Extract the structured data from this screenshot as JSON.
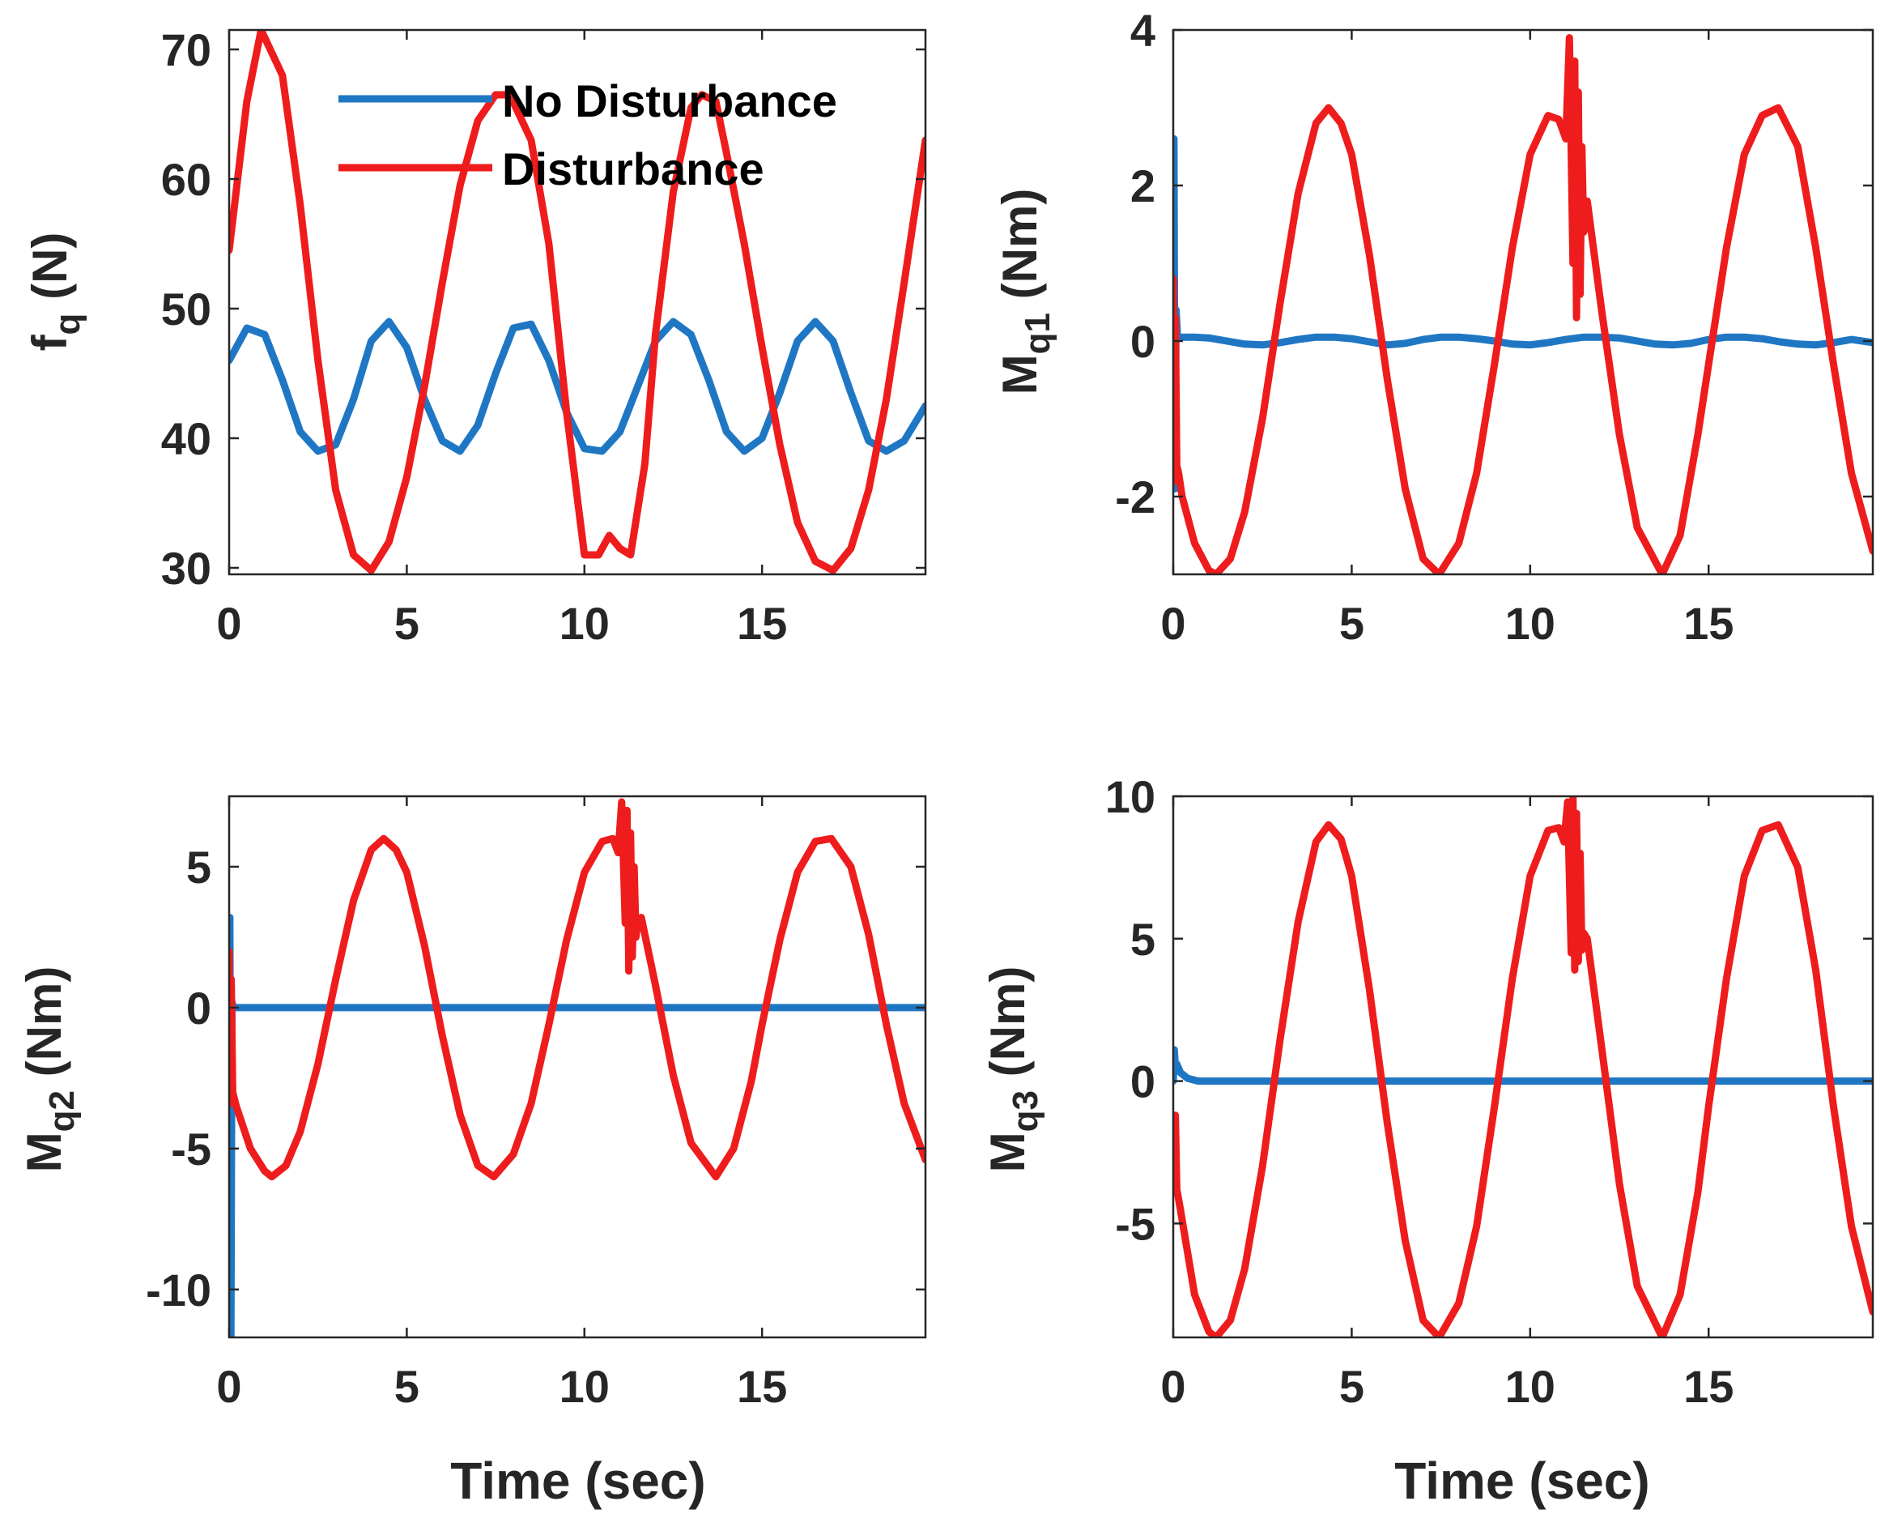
{
  "colors": {
    "no_disturbance": "#1f77c4",
    "disturbance": "#ee1c1c",
    "axis": "#262626"
  },
  "legend": {
    "entries": [
      "No Disturbance",
      "Disturbance"
    ],
    "location": "top-left panel, upper middle"
  },
  "chart_data": [
    {
      "type": "line",
      "ylabel_main": "f",
      "ylabel_sub": "q",
      "ylabel_unit": " (N)",
      "xlabel": "",
      "xlim": [
        0,
        19.6
      ],
      "ylim": [
        29.5,
        71.5
      ],
      "xticks": [
        "0",
        "5",
        "10",
        "15"
      ],
      "xtick_values": [
        0,
        5,
        10,
        15
      ],
      "yticks": [
        "30",
        "40",
        "50",
        "60",
        "70"
      ],
      "ytick_values": [
        30,
        40,
        50,
        60,
        70
      ],
      "series": [
        {
          "name": "No Disturbance",
          "x": [
            0,
            0.5,
            1.0,
            1.5,
            2.0,
            2.5,
            3.0,
            3.5,
            4.0,
            4.5,
            5.0,
            5.5,
            6.0,
            6.5,
            7.0,
            7.5,
            8.0,
            8.5,
            9.0,
            9.5,
            10.0,
            10.5,
            11.0,
            11.5,
            12.0,
            12.5,
            13.0,
            13.5,
            14.0,
            14.5,
            15.0,
            15.5,
            16.0,
            16.5,
            17.0,
            17.5,
            18.0,
            18.5,
            19.0,
            19.6
          ],
          "values": [
            46.0,
            48.5,
            48.0,
            44.5,
            40.5,
            39.0,
            39.5,
            43.0,
            47.5,
            49.0,
            47.0,
            43.0,
            39.8,
            39.0,
            41.0,
            45.0,
            48.5,
            48.8,
            46.0,
            42.0,
            39.2,
            39.0,
            40.5,
            44.0,
            47.5,
            49.0,
            48.0,
            44.5,
            40.5,
            39.0,
            40.0,
            43.5,
            47.5,
            49.0,
            47.5,
            43.5,
            39.8,
            39.0,
            39.8,
            42.5
          ]
        },
        {
          "name": "Disturbance",
          "x": [
            0,
            0.5,
            0.9,
            1.5,
            2.0,
            2.5,
            3.0,
            3.5,
            4.0,
            4.5,
            5.0,
            5.5,
            6.0,
            6.5,
            7.0,
            7.5,
            7.9,
            8.5,
            9.0,
            9.5,
            10.0,
            10.4,
            10.7,
            11.0,
            11.3,
            11.7,
            12.0,
            12.5,
            13.0,
            13.3,
            13.7,
            14.0,
            14.5,
            15.0,
            15.5,
            16.0,
            16.5,
            17.0,
            17.5,
            18.0,
            18.5,
            19.0,
            19.6
          ],
          "values": [
            54.5,
            66.0,
            71.5,
            68.0,
            58.0,
            46.0,
            36.0,
            31.0,
            29.8,
            32.0,
            37.0,
            44.0,
            52.0,
            59.5,
            64.5,
            66.5,
            66.5,
            63.0,
            55.0,
            42.0,
            31.0,
            31.0,
            32.5,
            31.5,
            31.0,
            38.0,
            48.0,
            59.0,
            65.5,
            66.5,
            66.0,
            62.0,
            55.0,
            47.0,
            39.5,
            33.5,
            30.5,
            29.8,
            31.5,
            36.0,
            43.0,
            52.0,
            63.0
          ]
        }
      ]
    },
    {
      "type": "line",
      "ylabel_main": "M",
      "ylabel_sub": "q1",
      "ylabel_unit": " (Nm)",
      "xlabel": "",
      "xlim": [
        0,
        19.6
      ],
      "ylim": [
        -3,
        4
      ],
      "xticks": [
        "0",
        "5",
        "10",
        "15"
      ],
      "xtick_values": [
        0,
        5,
        10,
        15
      ],
      "yticks": [
        "-2",
        "0",
        "2",
        "4"
      ],
      "ytick_values": [
        -2,
        0,
        2,
        4
      ],
      "series": [
        {
          "name": "No Disturbance",
          "x": [
            0,
            0.02,
            0.05,
            0.08,
            0.12,
            0.2,
            0.6,
            1.0,
            1.5,
            2.0,
            2.5,
            3.0,
            3.5,
            4.0,
            4.5,
            5.0,
            5.5,
            6.0,
            6.5,
            7.0,
            7.5,
            8.0,
            8.5,
            9.0,
            9.5,
            10.0,
            10.5,
            11.0,
            11.5,
            12.0,
            12.5,
            13.0,
            13.5,
            14.0,
            14.5,
            15.0,
            15.5,
            16.0,
            16.5,
            17.0,
            17.5,
            18.0,
            18.5,
            19.0,
            19.6
          ],
          "values": [
            0,
            2.6,
            -1.9,
            0.4,
            0.05,
            0.05,
            0.05,
            0.04,
            0.0,
            -0.04,
            -0.05,
            -0.02,
            0.02,
            0.05,
            0.05,
            0.03,
            -0.01,
            -0.05,
            -0.03,
            0.02,
            0.05,
            0.05,
            0.03,
            0.0,
            -0.04,
            -0.05,
            -0.02,
            0.02,
            0.05,
            0.05,
            0.04,
            0.0,
            -0.04,
            -0.05,
            -0.03,
            0.02,
            0.05,
            0.05,
            0.03,
            -0.01,
            -0.04,
            -0.05,
            -0.02,
            0.02,
            -0.02
          ]
        },
        {
          "name": "Disturbance",
          "x": [
            0,
            0.03,
            0.06,
            0.1,
            0.15,
            0.25,
            0.6,
            1.0,
            1.2,
            1.6,
            2.0,
            2.5,
            3.0,
            3.5,
            4.0,
            4.35,
            4.7,
            5.0,
            5.5,
            6.0,
            6.5,
            7.0,
            7.45,
            8.0,
            8.5,
            9.0,
            9.5,
            10.0,
            10.5,
            10.8,
            11.0,
            11.1,
            11.2,
            11.25,
            11.3,
            11.35,
            11.4,
            11.45,
            11.5,
            11.6,
            12.0,
            12.5,
            13.0,
            13.7,
            14.2,
            14.7,
            15.0,
            15.5,
            16.0,
            16.5,
            16.95,
            17.5,
            18.0,
            18.5,
            19.0,
            19.6
          ],
          "values": [
            0.8,
            -1.8,
            0.3,
            -1.6,
            -1.7,
            -2.0,
            -2.6,
            -2.95,
            -3.0,
            -2.8,
            -2.2,
            -1.0,
            0.5,
            1.9,
            2.8,
            3.0,
            2.8,
            2.4,
            1.1,
            -0.5,
            -1.9,
            -2.8,
            -3.0,
            -2.6,
            -1.7,
            -0.3,
            1.2,
            2.4,
            2.9,
            2.85,
            2.6,
            3.9,
            1.0,
            3.6,
            0.3,
            3.2,
            0.6,
            2.5,
            1.4,
            1.8,
            0.4,
            -1.2,
            -2.4,
            -3.0,
            -2.5,
            -1.2,
            -0.3,
            1.2,
            2.4,
            2.9,
            3.0,
            2.5,
            1.2,
            -0.3,
            -1.7,
            -2.7
          ]
        }
      ]
    },
    {
      "type": "line",
      "ylabel_main": "M",
      "ylabel_sub": "q2",
      "ylabel_unit": " (Nm)",
      "xlabel": "Time (sec)",
      "xlim": [
        0,
        19.6
      ],
      "ylim": [
        -11.7,
        7.5
      ],
      "xticks": [
        "0",
        "5",
        "10",
        "15"
      ],
      "xtick_values": [
        0,
        5,
        10,
        15
      ],
      "yticks": [
        "-10",
        "-5",
        "0",
        "5"
      ],
      "ytick_values": [
        -10,
        -5,
        0,
        5
      ],
      "series": [
        {
          "name": "No Disturbance",
          "x": [
            0,
            0.02,
            0.05,
            0.08,
            0.12,
            0.2,
            1.0,
            19.6
          ],
          "values": [
            0,
            3.2,
            -11.7,
            0.2,
            0.0,
            0.0,
            0.0,
            0.0
          ]
        },
        {
          "name": "Disturbance",
          "x": [
            0,
            0.03,
            0.06,
            0.1,
            0.2,
            0.6,
            1.0,
            1.2,
            1.6,
            2.0,
            2.5,
            3.0,
            3.5,
            4.0,
            4.35,
            4.7,
            5.0,
            5.5,
            6.0,
            6.5,
            7.0,
            7.45,
            8.0,
            8.5,
            9.0,
            9.5,
            10.0,
            10.5,
            10.8,
            10.95,
            11.05,
            11.15,
            11.2,
            11.25,
            11.3,
            11.35,
            11.4,
            11.45,
            11.5,
            11.6,
            12.0,
            12.5,
            13.0,
            13.7,
            14.2,
            14.7,
            15.0,
            15.5,
            16.0,
            16.5,
            16.95,
            17.5,
            18.0,
            18.5,
            19.0,
            19.6
          ],
          "values": [
            2.0,
            -3.4,
            1.0,
            -3.0,
            -3.5,
            -5.0,
            -5.8,
            -6.0,
            -5.6,
            -4.4,
            -2.0,
            1.0,
            3.8,
            5.6,
            6.0,
            5.6,
            4.8,
            2.2,
            -1.0,
            -3.8,
            -5.6,
            -6.0,
            -5.2,
            -3.4,
            -0.6,
            2.4,
            4.8,
            5.9,
            6.0,
            5.5,
            7.3,
            3.0,
            7.0,
            1.3,
            6.2,
            1.8,
            5.0,
            2.5,
            3.0,
            3.2,
            0.8,
            -2.4,
            -4.8,
            -6.0,
            -5.0,
            -2.6,
            -0.6,
            2.4,
            4.8,
            5.9,
            6.0,
            5.0,
            2.6,
            -0.6,
            -3.4,
            -5.4
          ]
        }
      ]
    },
    {
      "type": "line",
      "ylabel_main": "M",
      "ylabel_sub": "q3",
      "ylabel_unit": " (Nm)",
      "xlabel": "Time (sec)",
      "xlim": [
        0,
        19.6
      ],
      "ylim": [
        -9,
        10
      ],
      "xticks": [
        "0",
        "5",
        "10",
        "15"
      ],
      "xtick_values": [
        0,
        5,
        10,
        15
      ],
      "yticks": [
        "-5",
        "0",
        "5",
        "10"
      ],
      "ytick_values": [
        -5,
        0,
        5,
        10
      ],
      "series": [
        {
          "name": "No Disturbance",
          "x": [
            0,
            0.03,
            0.06,
            0.1,
            0.2,
            0.4,
            0.7,
            1.0,
            19.6
          ],
          "values": [
            0,
            1.1,
            0.5,
            0.6,
            0.3,
            0.1,
            0.0,
            0.0,
            0.0
          ]
        },
        {
          "name": "Disturbance",
          "x": [
            0,
            0.03,
            0.06,
            0.1,
            0.2,
            0.6,
            1.0,
            1.2,
            1.6,
            2.0,
            2.5,
            3.0,
            3.5,
            4.0,
            4.35,
            4.7,
            5.0,
            5.5,
            6.0,
            6.5,
            7.0,
            7.45,
            8.0,
            8.5,
            9.0,
            9.5,
            10.0,
            10.5,
            10.8,
            10.95,
            11.05,
            11.15,
            11.2,
            11.25,
            11.3,
            11.35,
            11.4,
            11.45,
            11.5,
            11.6,
            12.0,
            12.5,
            13.0,
            13.7,
            14.2,
            14.7,
            15.0,
            15.5,
            16.0,
            16.5,
            16.95,
            17.5,
            18.0,
            18.5,
            19.0,
            19.6
          ],
          "values": [
            -1.5,
            -3.5,
            -1.2,
            -3.8,
            -4.5,
            -7.5,
            -8.8,
            -9.0,
            -8.4,
            -6.6,
            -3.0,
            1.5,
            5.6,
            8.4,
            9.0,
            8.5,
            7.2,
            3.2,
            -1.5,
            -5.6,
            -8.4,
            -9.0,
            -7.8,
            -5.1,
            -0.9,
            3.6,
            7.2,
            8.8,
            8.9,
            8.4,
            9.8,
            4.5,
            10.0,
            3.9,
            9.4,
            4.2,
            8.0,
            4.6,
            5.2,
            5.0,
            1.2,
            -3.6,
            -7.2,
            -9.0,
            -7.5,
            -3.9,
            -0.9,
            3.6,
            7.2,
            8.8,
            9.0,
            7.5,
            3.9,
            -0.9,
            -5.1,
            -8.1
          ]
        }
      ]
    }
  ]
}
